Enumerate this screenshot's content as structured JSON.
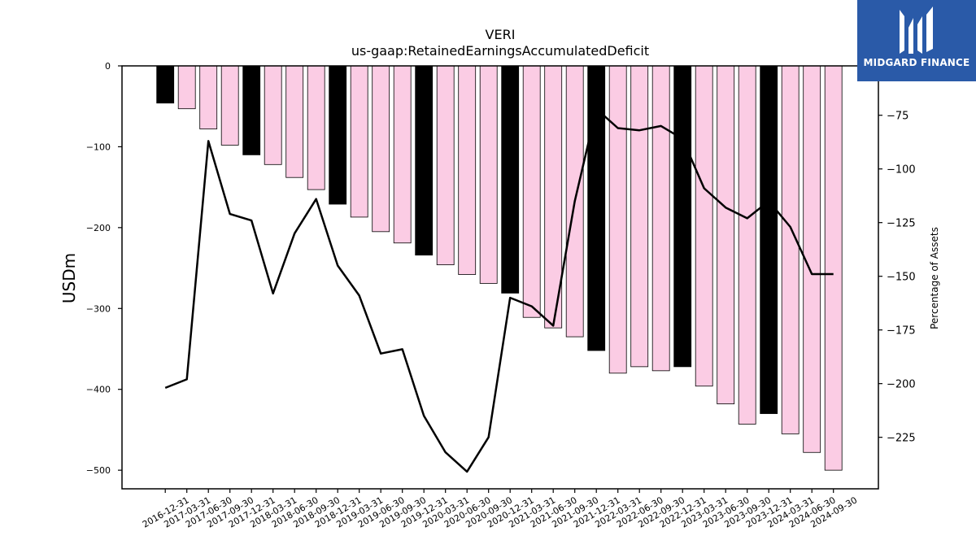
{
  "logo": {
    "text": "MIDGARD FINANCE",
    "background": "#2a5aa8"
  },
  "chart_data": {
    "type": "bar",
    "title": "VERI",
    "subtitle": "us-gaap:RetainedEarningsAccumulatedDeficit",
    "ylabel": "USDm",
    "y2label": "Percentage of Assets",
    "ylim": [
      -523,
      0
    ],
    "y2lim": [
      -249,
      -52
    ],
    "yticks": [
      0,
      -100,
      -200,
      -300,
      -400,
      -500
    ],
    "y2ticks": [
      -75,
      -100,
      -125,
      -150,
      -175,
      -200,
      -225
    ],
    "categories": [
      "2016-12-31",
      "2017-03-31",
      "2017-06-30",
      "2017-09-30",
      "2017-12-31",
      "2018-03-31",
      "2018-06-30",
      "2018-09-30",
      "2018-12-31",
      "2019-03-31",
      "2019-06-30",
      "2019-09-30",
      "2019-12-31",
      "2020-03-31",
      "2020-06-30",
      "2020-09-30",
      "2020-12-31",
      "2021-03-31",
      "2021-06-30",
      "2021-09-30",
      "2021-12-31",
      "2022-03-31",
      "2022-06-30",
      "2022-09-30",
      "2022-12-31",
      "2023-03-31",
      "2023-06-30",
      "2023-09-30",
      "2023-12-31",
      "2024-03-31",
      "2024-06-30",
      "2024-09-30"
    ],
    "series": [
      {
        "kind": "bar",
        "values": [
          -46,
          -53,
          -78,
          -98,
          -110,
          -122,
          -138,
          -153,
          -171,
          -187,
          -205,
          -219,
          -234,
          -246,
          -258,
          -269,
          -281,
          -311,
          -324,
          -335,
          -352,
          -380,
          -372,
          -377,
          -372,
          -396,
          -418,
          -443,
          -430,
          -455,
          -478,
          -500
        ],
        "colors": [
          "#000000",
          "#fbcce4",
          "#fbcce4",
          "#fbcce4",
          "#000000",
          "#fbcce4",
          "#fbcce4",
          "#fbcce4",
          "#000000",
          "#fbcce4",
          "#fbcce4",
          "#fbcce4",
          "#000000",
          "#fbcce4",
          "#fbcce4",
          "#fbcce4",
          "#000000",
          "#fbcce4",
          "#fbcce4",
          "#fbcce4",
          "#000000",
          "#fbcce4",
          "#fbcce4",
          "#fbcce4",
          "#000000",
          "#fbcce4",
          "#fbcce4",
          "#fbcce4",
          "#000000",
          "#fbcce4",
          "#fbcce4",
          "#fbcce4"
        ]
      },
      {
        "kind": "line",
        "axis": "right",
        "values": [
          -202,
          -198,
          -87,
          -121,
          -124,
          -158,
          -130,
          -114,
          -145,
          -159,
          -186,
          -184,
          -215,
          -232,
          -241,
          -225,
          -160,
          -164,
          -173,
          -115,
          -72,
          -81,
          -82,
          -80,
          -86,
          -109,
          -118,
          -123,
          -115,
          -127,
          -149,
          -149
        ],
        "color": "#000000"
      }
    ]
  }
}
